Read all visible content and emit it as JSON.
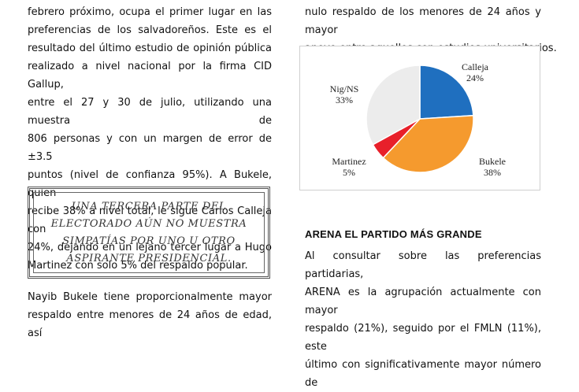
{
  "left_column": {
    "paragraph1_lines": [
      "febrero próximo, ocupa el primer lugar en las",
      "preferencias de los salvadoreños. Este es el",
      "resultado del último estudio de opinión pública",
      "realizado a nivel nacional por la firma CID Gallup,",
      "entre el 27 y 30 de julio, utilizando una muestra de",
      "806 personas y con un margen de error de ±3.5",
      "puntos (nivel de confianza 95%). A Bukele, quien",
      "recibe 38% a nivel total, le sigue Carlos Calleja con",
      "24%, dejando en un lejano tercer lugar a Hugo",
      "Martinez con solo 5% del respaldo popular."
    ],
    "pull_quote_lines": [
      "UNA TERCERA PARTE DEL",
      "ELECTORADO AÚN NO MUESTRA",
      "SIMPATÍAS POR UNO U OTRO",
      "ASPIRANTE PRESIDENCIAL."
    ],
    "paragraph2_lines": [
      "Nayib Bukele tiene proporcionalmente mayor",
      "respaldo entre menores de 24 años de edad, así"
    ]
  },
  "right_column": {
    "top_lines": [
      "nulo respaldo de los menores de 24 años y mayor",
      "apoyo entre aquellos con estudios universitarios."
    ],
    "section_heading": "ARENA EL PARTIDO MÁS GRANDE",
    "paragraph_lines": [
      "Al consultar sobre las preferencias partidarias,",
      "ARENA es la agrupación actualmente con mayor",
      "respaldo (21%), seguido por el FMLN (11%), este",
      "último con significativamente mayor número de"
    ]
  },
  "chart_data": {
    "type": "pie",
    "title": "",
    "slices": [
      {
        "label": "Calleja",
        "value": 24,
        "value_label": "24%",
        "color": "#1f6fbf"
      },
      {
        "label": "Bukele",
        "value": 38,
        "value_label": "38%",
        "color": "#f59a2e"
      },
      {
        "label": "Martinez",
        "value": 5,
        "value_label": "5%",
        "color": "#e8202a"
      },
      {
        "label": "Nig/NS",
        "value": 33,
        "value_label": "33%",
        "color": "#ececec"
      }
    ]
  }
}
